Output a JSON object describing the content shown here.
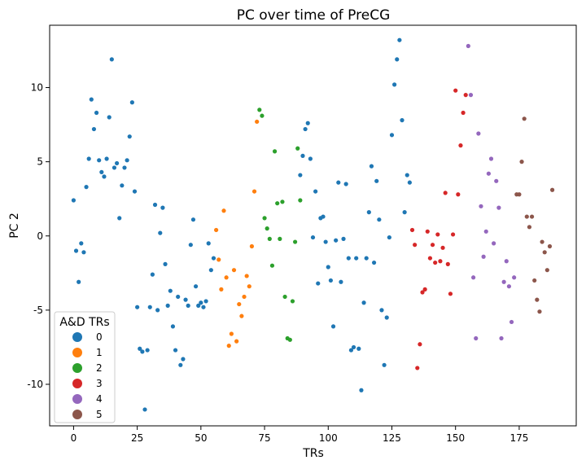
{
  "chart_data": {
    "type": "scatter",
    "title": "PC over time of PreCG",
    "xlabel": "TRs",
    "ylabel": "PC 2",
    "xlim": [
      -9.4,
      197.4
    ],
    "ylim": [
      -12.8,
      14.2
    ],
    "xticks": [
      0,
      25,
      50,
      75,
      100,
      125,
      150,
      175
    ],
    "yticks": [
      -10,
      -5,
      0,
      5,
      10
    ],
    "grid": false,
    "legend": {
      "title": "A&D TRs",
      "position": "bottom-left"
    },
    "series": [
      {
        "name": "0",
        "color": "#1f77b4",
        "points": [
          [
            0,
            2.4
          ],
          [
            1,
            -1.0
          ],
          [
            2,
            -3.1
          ],
          [
            3,
            -0.5
          ],
          [
            4,
            -1.1
          ],
          [
            5,
            3.3
          ],
          [
            6,
            5.2
          ],
          [
            7,
            9.2
          ],
          [
            8,
            7.2
          ],
          [
            9,
            8.3
          ],
          [
            10,
            5.1
          ],
          [
            11,
            4.3
          ],
          [
            12,
            4.0
          ],
          [
            13,
            5.2
          ],
          [
            14,
            8.0
          ],
          [
            15,
            11.9
          ],
          [
            16,
            4.6
          ],
          [
            17,
            4.9
          ],
          [
            18,
            1.2
          ],
          [
            19,
            3.4
          ],
          [
            20,
            4.6
          ],
          [
            21,
            5.1
          ],
          [
            22,
            6.7
          ],
          [
            23,
            9.0
          ],
          [
            24,
            3.0
          ],
          [
            25,
            -4.8
          ],
          [
            26,
            -7.6
          ],
          [
            27,
            -7.8
          ],
          [
            28,
            -11.7
          ],
          [
            29,
            -7.7
          ],
          [
            30,
            -4.8
          ],
          [
            31,
            -2.6
          ],
          [
            32,
            2.1
          ],
          [
            33,
            -5.0
          ],
          [
            34,
            0.2
          ],
          [
            35,
            1.9
          ],
          [
            36,
            -1.9
          ],
          [
            37,
            -4.7
          ],
          [
            38,
            -3.7
          ],
          [
            39,
            -6.1
          ],
          [
            40,
            -7.7
          ],
          [
            41,
            -4.1
          ],
          [
            42,
            -8.7
          ],
          [
            43,
            -8.3
          ],
          [
            44,
            -4.3
          ],
          [
            45,
            -4.7
          ],
          [
            46,
            -0.6
          ],
          [
            47,
            1.1
          ],
          [
            48,
            -3.4
          ],
          [
            49,
            -4.7
          ],
          [
            50,
            -4.5
          ],
          [
            51,
            -4.8
          ],
          [
            52,
            -4.4
          ],
          [
            53,
            -0.5
          ],
          [
            54,
            -2.3
          ],
          [
            55,
            -1.5
          ],
          [
            89,
            4.1
          ],
          [
            90,
            5.4
          ],
          [
            91,
            7.2
          ],
          [
            92,
            7.6
          ],
          [
            93,
            5.2
          ],
          [
            94,
            -0.1
          ],
          [
            95,
            3.0
          ],
          [
            96,
            -3.2
          ],
          [
            97,
            1.2
          ],
          [
            98,
            1.3
          ],
          [
            99,
            -0.4
          ],
          [
            100,
            -2.1
          ],
          [
            101,
            -3.0
          ],
          [
            102,
            -6.1
          ],
          [
            103,
            -0.3
          ],
          [
            104,
            3.6
          ],
          [
            105,
            -3.1
          ],
          [
            106,
            -0.2
          ],
          [
            107,
            3.5
          ],
          [
            108,
            -1.5
          ],
          [
            109,
            -7.7
          ],
          [
            110,
            -7.5
          ],
          [
            111,
            -1.5
          ],
          [
            112,
            -7.6
          ],
          [
            113,
            -10.4
          ],
          [
            114,
            -4.5
          ],
          [
            115,
            -1.5
          ],
          [
            116,
            1.6
          ],
          [
            117,
            4.7
          ],
          [
            118,
            -1.8
          ],
          [
            119,
            3.7
          ],
          [
            120,
            1.1
          ],
          [
            121,
            -5.0
          ],
          [
            122,
            -8.7
          ],
          [
            123,
            -5.5
          ],
          [
            124,
            -0.1
          ],
          [
            125,
            6.8
          ],
          [
            126,
            10.2
          ],
          [
            127,
            11.9
          ],
          [
            128,
            13.2
          ],
          [
            129,
            7.8
          ],
          [
            130,
            1.6
          ],
          [
            131,
            4.1
          ],
          [
            132,
            3.6
          ]
        ]
      },
      {
        "name": "1",
        "color": "#ff7f0e",
        "points": [
          [
            56,
            0.4
          ],
          [
            57,
            -1.6
          ],
          [
            58,
            -3.6
          ],
          [
            59,
            1.7
          ],
          [
            60,
            -2.8
          ],
          [
            61,
            -7.4
          ],
          [
            62,
            -6.6
          ],
          [
            63,
            -2.3
          ],
          [
            64,
            -7.1
          ],
          [
            65,
            -4.6
          ],
          [
            66,
            -5.4
          ],
          [
            67,
            -4.1
          ],
          [
            68,
            -2.7
          ],
          [
            69,
            -3.4
          ],
          [
            70,
            -0.7
          ],
          [
            71,
            3.0
          ],
          [
            72,
            7.7
          ]
        ]
      },
      {
        "name": "2",
        "color": "#2ca02c",
        "points": [
          [
            73,
            8.5
          ],
          [
            74,
            8.1
          ],
          [
            75,
            1.2
          ],
          [
            76,
            0.5
          ],
          [
            77,
            -0.2
          ],
          [
            78,
            -2.0
          ],
          [
            79,
            5.7
          ],
          [
            80,
            2.2
          ],
          [
            81,
            -0.2
          ],
          [
            82,
            2.3
          ],
          [
            83,
            -4.1
          ],
          [
            84,
            -6.9
          ],
          [
            85,
            -7.0
          ],
          [
            86,
            -4.4
          ],
          [
            87,
            -0.4
          ],
          [
            88,
            5.9
          ],
          [
            89,
            2.4
          ]
        ]
      },
      {
        "name": "3",
        "color": "#d62728",
        "points": [
          [
            133,
            0.4
          ],
          [
            134,
            -0.6
          ],
          [
            135,
            -8.9
          ],
          [
            136,
            -7.3
          ],
          [
            137,
            -3.8
          ],
          [
            138,
            -3.6
          ],
          [
            139,
            0.3
          ],
          [
            140,
            -1.5
          ],
          [
            141,
            -0.6
          ],
          [
            142,
            -1.8
          ],
          [
            143,
            0.1
          ],
          [
            144,
            -1.7
          ],
          [
            145,
            -0.8
          ],
          [
            146,
            2.9
          ],
          [
            147,
            -1.9
          ],
          [
            148,
            -3.9
          ],
          [
            149,
            0.1
          ],
          [
            150,
            9.8
          ],
          [
            151,
            2.8
          ],
          [
            152,
            6.1
          ],
          [
            153,
            8.3
          ],
          [
            154,
            9.5
          ]
        ]
      },
      {
        "name": "4",
        "color": "#9467bd",
        "points": [
          [
            155,
            12.8
          ],
          [
            156,
            9.5
          ],
          [
            157,
            -2.8
          ],
          [
            158,
            -6.9
          ],
          [
            159,
            6.9
          ],
          [
            160,
            2.0
          ],
          [
            161,
            -1.4
          ],
          [
            162,
            0.3
          ],
          [
            163,
            4.2
          ],
          [
            164,
            5.2
          ],
          [
            165,
            -0.5
          ],
          [
            166,
            3.7
          ],
          [
            167,
            1.9
          ],
          [
            168,
            -6.9
          ],
          [
            169,
            -3.1
          ],
          [
            170,
            -1.7
          ],
          [
            171,
            -3.4
          ],
          [
            172,
            -5.8
          ],
          [
            173,
            -2.8
          ]
        ]
      },
      {
        "name": "5",
        "color": "#8c564b",
        "points": [
          [
            174,
            2.8
          ],
          [
            175,
            2.8
          ],
          [
            176,
            5.0
          ],
          [
            177,
            7.9
          ],
          [
            178,
            1.3
          ],
          [
            179,
            0.6
          ],
          [
            180,
            1.3
          ],
          [
            181,
            -3.0
          ],
          [
            182,
            -4.3
          ],
          [
            183,
            -5.1
          ],
          [
            184,
            -0.4
          ],
          [
            185,
            -1.1
          ],
          [
            186,
            -2.3
          ],
          [
            187,
            -0.7
          ],
          [
            188,
            3.1
          ]
        ]
      }
    ]
  }
}
